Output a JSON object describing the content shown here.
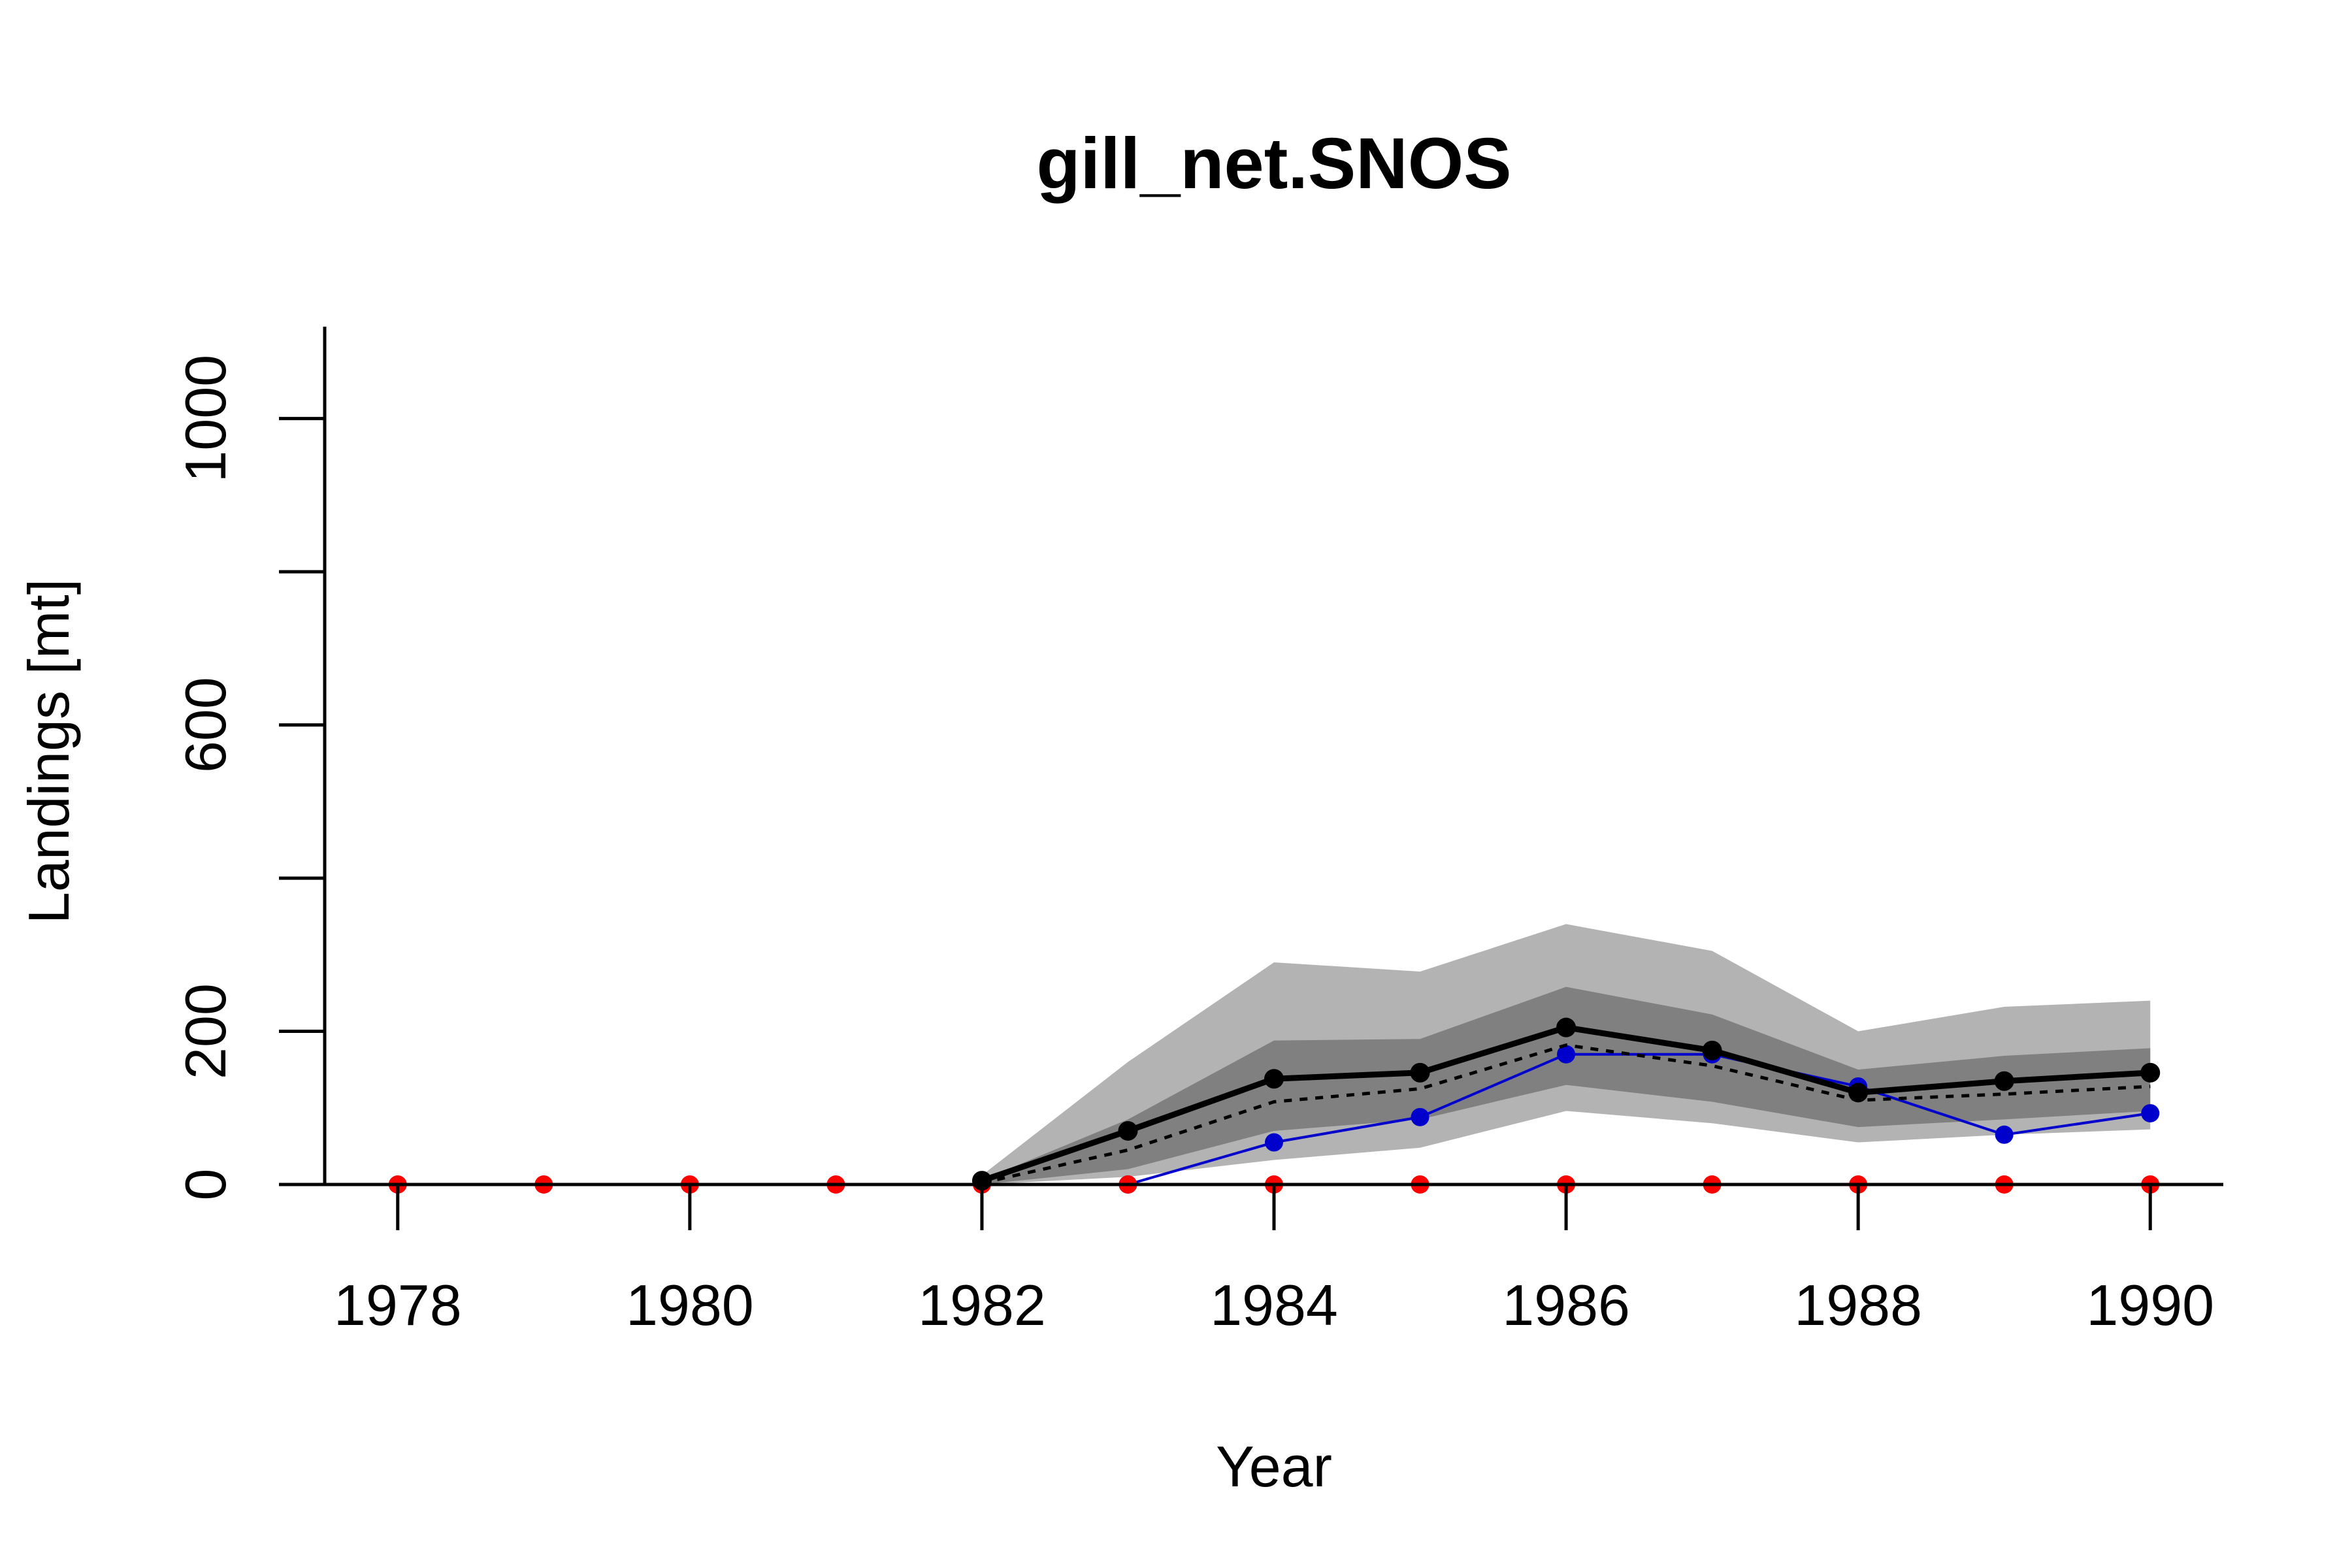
{
  "chart_data": {
    "type": "line",
    "title": "gill_net.SNOS",
    "xlabel": "Year",
    "ylabel": "Landings [mt]",
    "xlim": [
      1977.5,
      1990.5
    ],
    "ylim": [
      0,
      1120
    ],
    "x_ticks": [
      1978,
      1980,
      1982,
      1984,
      1986,
      1988,
      1990
    ],
    "y_ticks": [
      0,
      200,
      400,
      600,
      800,
      1000
    ],
    "y_tick_labels": [
      "0",
      "200",
      "",
      "600",
      "",
      "1000"
    ],
    "grid": false,
    "legend": "none",
    "x": [
      1978,
      1979,
      1980,
      1981,
      1982,
      1983,
      1984,
      1985,
      1986,
      1987,
      1988,
      1989,
      1990
    ],
    "bands": [
      {
        "role": "outer",
        "color": "#b3b3b3",
        "x": [
          1982,
          1983,
          1984,
          1985,
          1986,
          1987,
          1988,
          1989,
          1990
        ],
        "lower": [
          0,
          10,
          32,
          48,
          96,
          80,
          55,
          65,
          72
        ],
        "upper": [
          12,
          160,
          290,
          278,
          340,
          305,
          200,
          232,
          240
        ]
      },
      {
        "role": "inner",
        "color": "#808080",
        "x": [
          1982,
          1983,
          1984,
          1985,
          1986,
          1987,
          1988,
          1989,
          1990
        ],
        "lower": [
          0,
          20,
          70,
          85,
          130,
          108,
          75,
          85,
          96
        ],
        "upper": [
          6,
          85,
          188,
          190,
          258,
          222,
          150,
          168,
          178
        ]
      }
    ],
    "series": [
      {
        "role": "median",
        "style": "solid-thick",
        "color": "#000000",
        "markers": true,
        "x": [
          1982,
          1983,
          1984,
          1985,
          1986,
          1987,
          1988,
          1989,
          1990
        ],
        "values": [
          5,
          70,
          138,
          146,
          205,
          175,
          120,
          135,
          146
        ]
      },
      {
        "role": "mean",
        "style": "dotted",
        "color": "#000000",
        "markers": false,
        "x": [
          1982,
          1983,
          1984,
          1985,
          1986,
          1987,
          1988,
          1989,
          1990
        ],
        "values": [
          2,
          45,
          108,
          125,
          182,
          155,
          110,
          118,
          128
        ]
      },
      {
        "role": "observed",
        "style": "solid-thin",
        "color": "#0000cc",
        "markers": true,
        "x": [
          1983,
          1984,
          1985,
          1986,
          1987,
          1988,
          1989,
          1990
        ],
        "values": [
          0,
          55,
          88,
          170,
          170,
          128,
          65,
          93
        ]
      },
      {
        "role": "zero-series",
        "style": "solid-thin",
        "color": "#ff0000",
        "markers": true,
        "x": [
          1978,
          1979,
          1980,
          1981,
          1982,
          1983,
          1984,
          1985,
          1986,
          1987,
          1988,
          1989,
          1990
        ],
        "values": [
          0,
          0,
          0,
          0,
          0,
          0,
          0,
          0,
          0,
          0,
          0,
          0,
          0
        ]
      }
    ]
  }
}
